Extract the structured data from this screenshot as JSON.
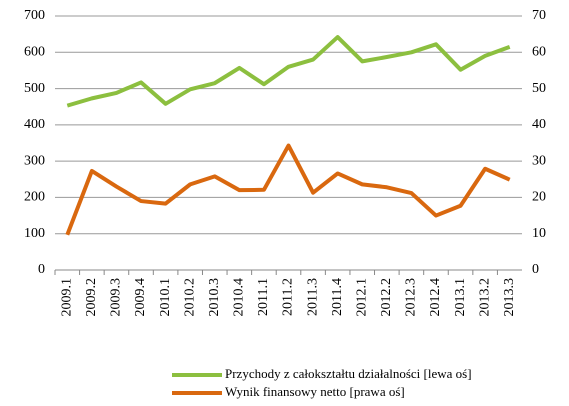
{
  "chart_data": {
    "type": "line",
    "categories": [
      "2009.1",
      "2009.2",
      "2009.3",
      "2009.4",
      "2010.1",
      "2010.2",
      "2010.3",
      "2010.4",
      "2011.1",
      "2011.2",
      "2011.3",
      "2011.4",
      "2012.1",
      "2012.2",
      "2012.3",
      "2012.4",
      "2013.1",
      "2013.2",
      "2013.3"
    ],
    "series": [
      {
        "name": "Przychody z całokształtu działalności [lewa oś]",
        "color": "#8cbf3f",
        "values": [
          453,
          473,
          488,
          517,
          458,
          498,
          515,
          557,
          512,
          560,
          580,
          642,
          575,
          587,
          600,
          622,
          552,
          590,
          615
        ]
      },
      {
        "name": "Wynik finansowy netto [prawa oś]",
        "color": "#d9680f",
        "axis": "y2",
        "values": [
          9.7,
          27.3,
          23,
          19,
          18.3,
          23.6,
          25.8,
          22,
          22.1,
          34.3,
          21.3,
          26.6,
          23.6,
          22.8,
          21.2,
          15,
          17.7,
          27.9,
          24.9
        ]
      }
    ],
    "ylim": [
      0,
      700
    ],
    "yticks": [
      0,
      100,
      200,
      300,
      400,
      500,
      600,
      700
    ],
    "y2lim": [
      0,
      70
    ],
    "y2ticks": [
      0,
      10,
      20,
      30,
      40,
      50,
      60,
      70
    ],
    "grid": true,
    "legend": "bottom"
  }
}
